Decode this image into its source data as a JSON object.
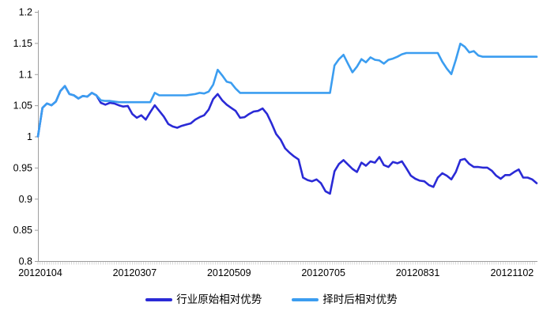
{
  "chart_data": {
    "type": "line",
    "title": "",
    "grid": false,
    "legend_position": "bottom",
    "x_axis": {
      "tick_labels": [
        "20120104",
        "20120307",
        "20120509",
        "20120705",
        "20120831",
        "20121102"
      ],
      "tick_indices": [
        0,
        21,
        42,
        63,
        84,
        105
      ],
      "num_points": 112
    },
    "y_axis": {
      "min": 0.8,
      "max": 1.2,
      "step": 0.05,
      "tick_labels": [
        "0.8",
        "0.85",
        "0.9",
        "0.95",
        "1",
        "1.05",
        "1.1",
        "1.15",
        "1.2"
      ]
    },
    "series": [
      {
        "name": "行业原始相对优势",
        "color": "#2a2ad6",
        "values": [
          1.0,
          1.046,
          1.053,
          1.05,
          1.056,
          1.073,
          1.081,
          1.068,
          1.066,
          1.061,
          1.065,
          1.064,
          1.07,
          1.066,
          1.054,
          1.051,
          1.054,
          1.053,
          1.05,
          1.048,
          1.049,
          1.036,
          1.03,
          1.034,
          1.027,
          1.039,
          1.05,
          1.041,
          1.032,
          1.02,
          1.016,
          1.014,
          1.017,
          1.019,
          1.021,
          1.027,
          1.031,
          1.034,
          1.043,
          1.06,
          1.068,
          1.058,
          1.051,
          1.046,
          1.041,
          1.03,
          1.031,
          1.036,
          1.04,
          1.041,
          1.045,
          1.036,
          1.021,
          1.004,
          0.995,
          0.981,
          0.974,
          0.968,
          0.963,
          0.934,
          0.93,
          0.928,
          0.931,
          0.925,
          0.912,
          0.908,
          0.944,
          0.956,
          0.962,
          0.955,
          0.948,
          0.943,
          0.958,
          0.953,
          0.96,
          0.958,
          0.967,
          0.954,
          0.951,
          0.959,
          0.957,
          0.96,
          0.949,
          0.937,
          0.932,
          0.929,
          0.928,
          0.922,
          0.919,
          0.934,
          0.941,
          0.937,
          0.931,
          0.943,
          0.962,
          0.964,
          0.956,
          0.951,
          0.951,
          0.95,
          0.95,
          0.945,
          0.937,
          0.932,
          0.938,
          0.938,
          0.943,
          0.947,
          0.934,
          0.934,
          0.931,
          0.925
        ]
      },
      {
        "name": "择时后相对优势",
        "color": "#3b9df0",
        "values": [
          1.0,
          1.046,
          1.053,
          1.05,
          1.056,
          1.073,
          1.081,
          1.068,
          1.066,
          1.061,
          1.065,
          1.064,
          1.07,
          1.066,
          1.058,
          1.057,
          1.057,
          1.056,
          1.055,
          1.055,
          1.055,
          1.055,
          1.055,
          1.055,
          1.055,
          1.055,
          1.07,
          1.066,
          1.066,
          1.066,
          1.066,
          1.066,
          1.066,
          1.066,
          1.067,
          1.068,
          1.07,
          1.069,
          1.072,
          1.083,
          1.107,
          1.098,
          1.088,
          1.086,
          1.077,
          1.07,
          1.07,
          1.07,
          1.07,
          1.07,
          1.07,
          1.07,
          1.07,
          1.07,
          1.07,
          1.07,
          1.07,
          1.07,
          1.07,
          1.07,
          1.07,
          1.07,
          1.07,
          1.07,
          1.07,
          1.07,
          1.114,
          1.124,
          1.131,
          1.117,
          1.103,
          1.112,
          1.124,
          1.119,
          1.127,
          1.123,
          1.122,
          1.117,
          1.123,
          1.125,
          1.128,
          1.132,
          1.134,
          1.134,
          1.134,
          1.134,
          1.134,
          1.134,
          1.134,
          1.134,
          1.12,
          1.109,
          1.1,
          1.123,
          1.149,
          1.144,
          1.135,
          1.137,
          1.13,
          1.128,
          1.128,
          1.128,
          1.128,
          1.128,
          1.128,
          1.128,
          1.128,
          1.128,
          1.128,
          1.128,
          1.128,
          1.128
        ]
      }
    ]
  },
  "style": {
    "axis_color": "#9e9e9e",
    "minor_tick_color": "#c9c9c9",
    "label_color": "#000000",
    "background": "#ffffff"
  }
}
